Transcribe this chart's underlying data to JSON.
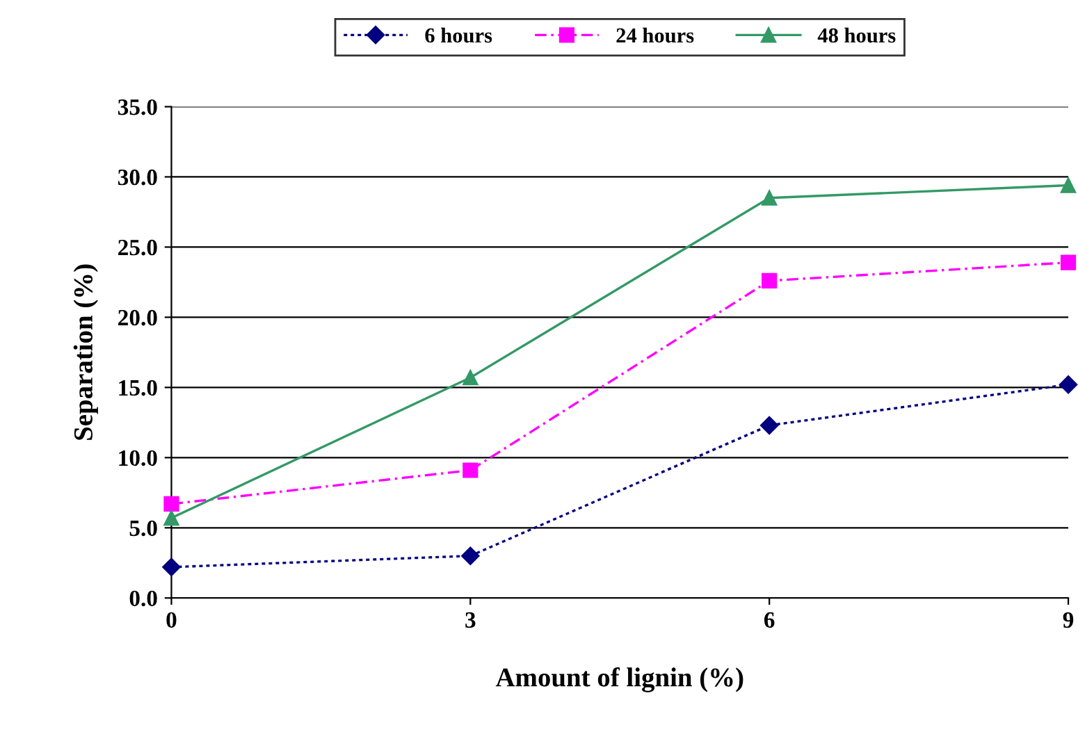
{
  "chart_data": {
    "type": "line",
    "xlabel": "Amount of lignin (%)",
    "ylabel": "Separation (%)",
    "x": [
      0,
      3,
      6,
      9
    ],
    "xlim": [
      0,
      9
    ],
    "xticks": [
      0,
      3,
      6,
      9
    ],
    "ylim": [
      0,
      35
    ],
    "yticks": [
      {
        "value": 0,
        "label": "0.0"
      },
      {
        "value": 5,
        "label": "5.0"
      },
      {
        "value": 10,
        "label": "10.0"
      },
      {
        "value": 15,
        "label": "15.0"
      },
      {
        "value": 20,
        "label": "20.0"
      },
      {
        "value": 25,
        "label": "25.0"
      },
      {
        "value": 30,
        "label": "30.0"
      },
      {
        "value": 35,
        "label": "35.0"
      }
    ],
    "grid": "y",
    "legend": "top",
    "series": [
      {
        "name": "6 hours",
        "color": "#000080",
        "marker": "diamond",
        "line_style": "dotted",
        "values": [
          2.2,
          3.0,
          12.3,
          15.2
        ]
      },
      {
        "name": "24 hours",
        "color": "#ff00ff",
        "marker": "square",
        "line_style": "dashed",
        "values": [
          6.7,
          9.1,
          22.6,
          23.9
        ]
      },
      {
        "name": "48 hours",
        "color": "#339966",
        "marker": "triangle",
        "line_style": "solid",
        "values": [
          5.7,
          15.7,
          28.5,
          29.4
        ]
      }
    ]
  }
}
